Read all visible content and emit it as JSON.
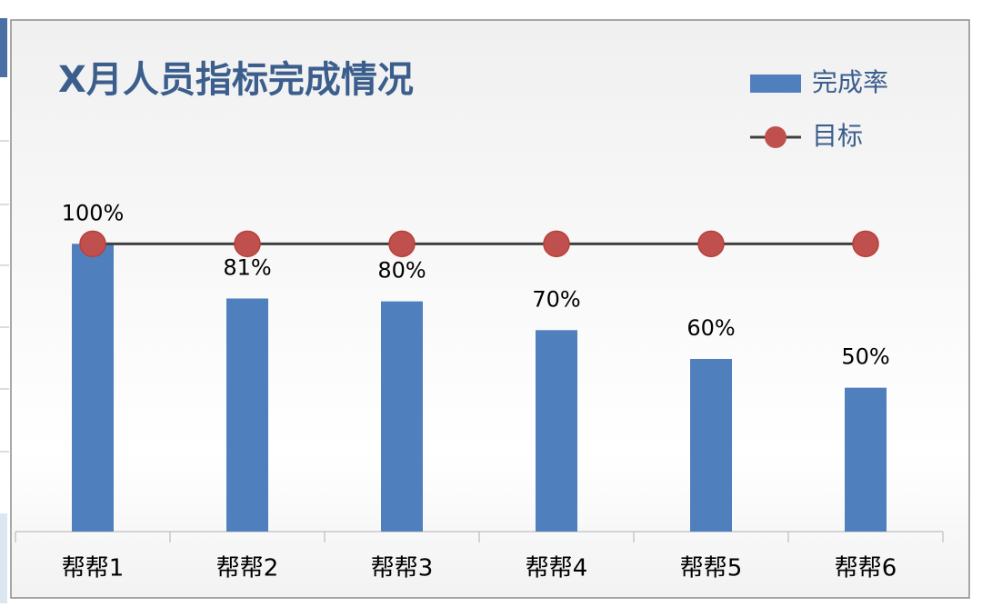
{
  "chart_data": {
    "type": "bar",
    "title": "X月人员指标完成情况",
    "categories": [
      "帮帮1",
      "帮帮2",
      "帮帮3",
      "帮帮4",
      "帮帮5",
      "帮帮6"
    ],
    "series": [
      {
        "name": "完成率",
        "type": "bar",
        "color": "#4f7fbd",
        "values": [
          100,
          81,
          80,
          70,
          60,
          50
        ],
        "value_labels": [
          "100%",
          "81%",
          "80%",
          "70%",
          "60%",
          "50%"
        ]
      },
      {
        "name": "目标",
        "type": "line",
        "color": "#c0504d",
        "line_color": "#404040",
        "values": [
          100,
          100,
          100,
          100,
          100,
          100
        ]
      }
    ],
    "ylim": [
      0,
      120
    ],
    "legend": "top-right"
  }
}
